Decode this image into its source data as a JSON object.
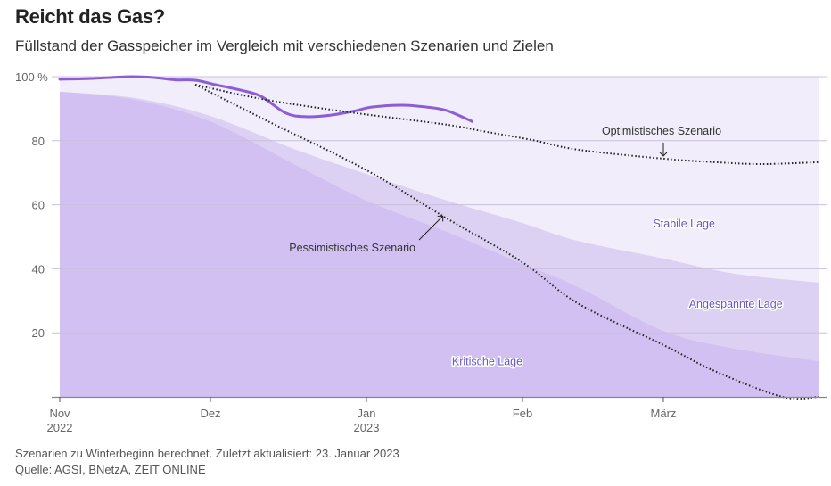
{
  "header": {
    "title": "Reicht das Gas?",
    "subtitle": "Füllstand der Gasspeicher im Vergleich mit verschiedenen Szenarien und Zielen"
  },
  "footer": {
    "note": "Szenarien zu Winterbeginn berechnet. Zuletzt aktualisiert: 23. Januar 2023",
    "source": "Quelle: AGSI, BNetzA, ZEIT ONLINE"
  },
  "colors": {
    "stabile": "#f1edfb",
    "angespannte": "#ddd1f3",
    "kritische": "#d1c0f1",
    "actual_line": "#8b5ed8",
    "scenario_line": "#222222",
    "band_label": "#6a55c8",
    "grid": "#c9c0dd"
  },
  "chart_data": {
    "type": "area",
    "title": "Reicht das Gas?",
    "subtitle": "Füllstand der Gasspeicher im Vergleich mit verschiedenen Szenarien und Zielen",
    "xlabel": "",
    "ylabel": "%",
    "x_unit": "days since 1 Nov 2022",
    "xlim": [
      0,
      150
    ],
    "ylim": [
      0,
      100
    ],
    "grid": true,
    "y_ticks": [
      {
        "value": 100,
        "label": "100 %"
      },
      {
        "value": 80,
        "label": "80"
      },
      {
        "value": 60,
        "label": "60"
      },
      {
        "value": 40,
        "label": "40"
      },
      {
        "value": 20,
        "label": "20"
      }
    ],
    "x_ticks": [
      {
        "value": 0,
        "label": "Nov",
        "sublabel": "2022"
      },
      {
        "value": 30,
        "label": "Dez",
        "sublabel": ""
      },
      {
        "value": 61,
        "label": "Jan",
        "sublabel": "2023"
      },
      {
        "value": 92,
        "label": "Feb",
        "sublabel": ""
      },
      {
        "value": 120,
        "label": "März",
        "sublabel": ""
      }
    ],
    "bands": [
      {
        "name": "Stabile Lage",
        "label_at": [
          124,
          54
        ],
        "x": [
          0,
          150
        ],
        "upper": [
          100,
          100
        ]
      },
      {
        "name": "Angespannte Lage",
        "label_at": [
          134,
          29
        ],
        "x": [
          0,
          15,
          30,
          47,
          61,
          77,
          92,
          103,
          120,
          134,
          150
        ],
        "upper": [
          95.3,
          93.3,
          87.7,
          77.2,
          69.6,
          61.3,
          54.3,
          48.7,
          43.2,
          38.4,
          35.7
        ]
      },
      {
        "name": "Kritische Lage",
        "label_at": [
          85,
          11
        ],
        "x": [
          0,
          15,
          30,
          47,
          61,
          77,
          92,
          103,
          120,
          133,
          150
        ],
        "upper": [
          95.3,
          92.8,
          86.0,
          72.4,
          61.3,
          51.5,
          41.5,
          34.3,
          20.6,
          15.3,
          11.1
        ]
      }
    ],
    "series": [
      {
        "name": "Füllstand",
        "style": "solid",
        "x": [
          0,
          6,
          14,
          19,
          23,
          27,
          31,
          36,
          40,
          45,
          49,
          54,
          59,
          62,
          68,
          73,
          77,
          82
        ],
        "values": [
          99.2,
          99.4,
          100,
          99.7,
          99.0,
          98.9,
          97.5,
          95.8,
          93.9,
          88.6,
          87.5,
          88.0,
          89.4,
          90.5,
          91.1,
          90.5,
          89.4,
          86.0
        ]
      },
      {
        "name": "Optimistisches Szenario",
        "style": "dotted",
        "x": [
          27,
          41,
          59,
          77,
          84,
          94,
          103,
          120,
          130,
          139,
          150
        ],
        "values": [
          97.5,
          92.8,
          88.6,
          85.0,
          83.0,
          80.2,
          77.2,
          74.4,
          73.3,
          72.7,
          73.3
        ]
      },
      {
        "name": "Pessimistisches Szenario",
        "style": "dotted",
        "x": [
          27,
          41,
          61,
          77,
          92,
          103,
          120,
          130,
          143,
          150
        ],
        "values": [
          97.5,
          86.4,
          70.8,
          55.7,
          42.0,
          29.2,
          16.2,
          8.0,
          0,
          0
        ]
      }
    ],
    "annotations": [
      {
        "text": "Optimistisches Szenario",
        "points_to": [
          120,
          74.4
        ],
        "arrow": "down"
      },
      {
        "text": "Pessimistisches Szenario",
        "points_to": [
          76,
          57
        ],
        "arrow": "up-right"
      }
    ]
  }
}
